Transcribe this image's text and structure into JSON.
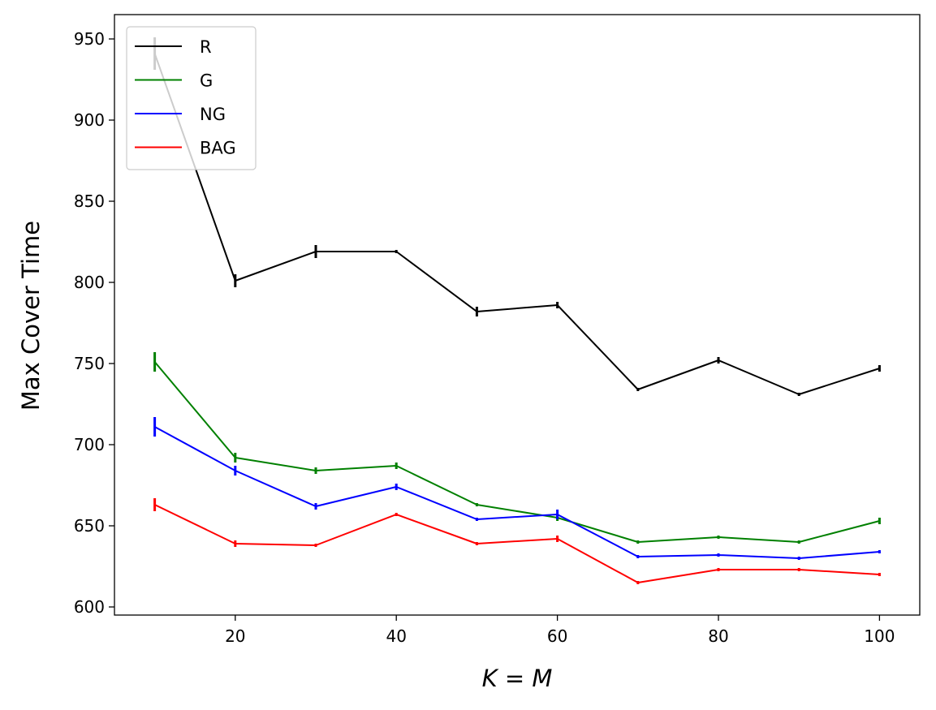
{
  "chart_data": {
    "type": "line",
    "title": "",
    "xlabel": "K = M",
    "ylabel": "Max Cover Time",
    "xlim": [
      5,
      105
    ],
    "ylim": [
      595,
      965
    ],
    "x_ticks": [
      20,
      40,
      60,
      80,
      100
    ],
    "y_ticks": [
      600,
      650,
      700,
      750,
      800,
      850,
      900,
      950
    ],
    "grid": false,
    "legend_position": "top-left",
    "x": [
      10,
      20,
      30,
      40,
      50,
      60,
      70,
      80,
      90,
      100
    ],
    "series": [
      {
        "name": "R",
        "color": "#000000",
        "values": [
          941,
          801,
          819,
          819,
          782,
          786,
          734,
          752,
          731,
          747
        ],
        "errors": [
          10,
          4,
          4,
          1,
          3,
          2,
          1,
          2,
          1,
          2
        ]
      },
      {
        "name": "G",
        "color": "#008000",
        "values": [
          751,
          692,
          684,
          687,
          663,
          655,
          640,
          643,
          640,
          653
        ],
        "errors": [
          6,
          3,
          2,
          2,
          1,
          2,
          1,
          1,
          1,
          2
        ]
      },
      {
        "name": "NG",
        "color": "#0000ff",
        "values": [
          711,
          684,
          662,
          674,
          654,
          657,
          631,
          632,
          630,
          634
        ],
        "errors": [
          6,
          3,
          2,
          2,
          1,
          3,
          1,
          1,
          1,
          1
        ]
      },
      {
        "name": "BAG",
        "color": "#ff0000",
        "values": [
          663,
          639,
          638,
          657,
          639,
          642,
          615,
          623,
          623,
          620
        ],
        "errors": [
          4,
          2,
          1,
          1,
          1,
          2,
          1,
          1,
          1,
          1
        ]
      }
    ]
  }
}
